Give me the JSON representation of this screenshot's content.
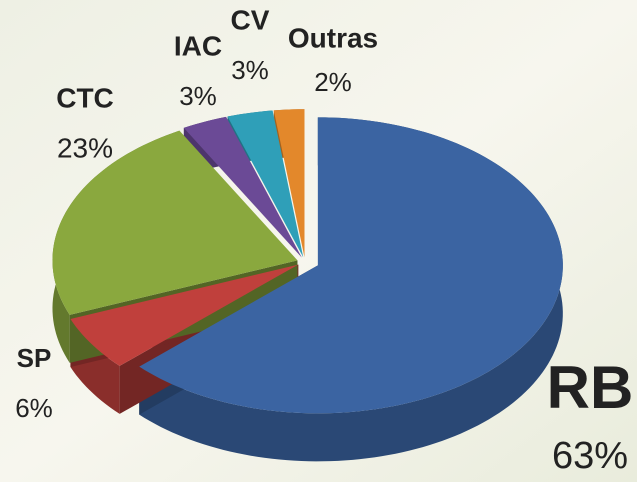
{
  "chart_data": {
    "type": "pie",
    "categories": [
      "RB",
      "SP",
      "CTC",
      "IAC",
      "CV",
      "Outras"
    ],
    "values": [
      63,
      6,
      23,
      3,
      3,
      2
    ],
    "value_labels": [
      "63%",
      "6%",
      "23%",
      "3%",
      "3%",
      "2%"
    ],
    "colors": [
      "#3b64a2",
      "#c0403c",
      "#8aa83e",
      "#6b4a96",
      "#2f9fb8",
      "#e3882b"
    ]
  }
}
